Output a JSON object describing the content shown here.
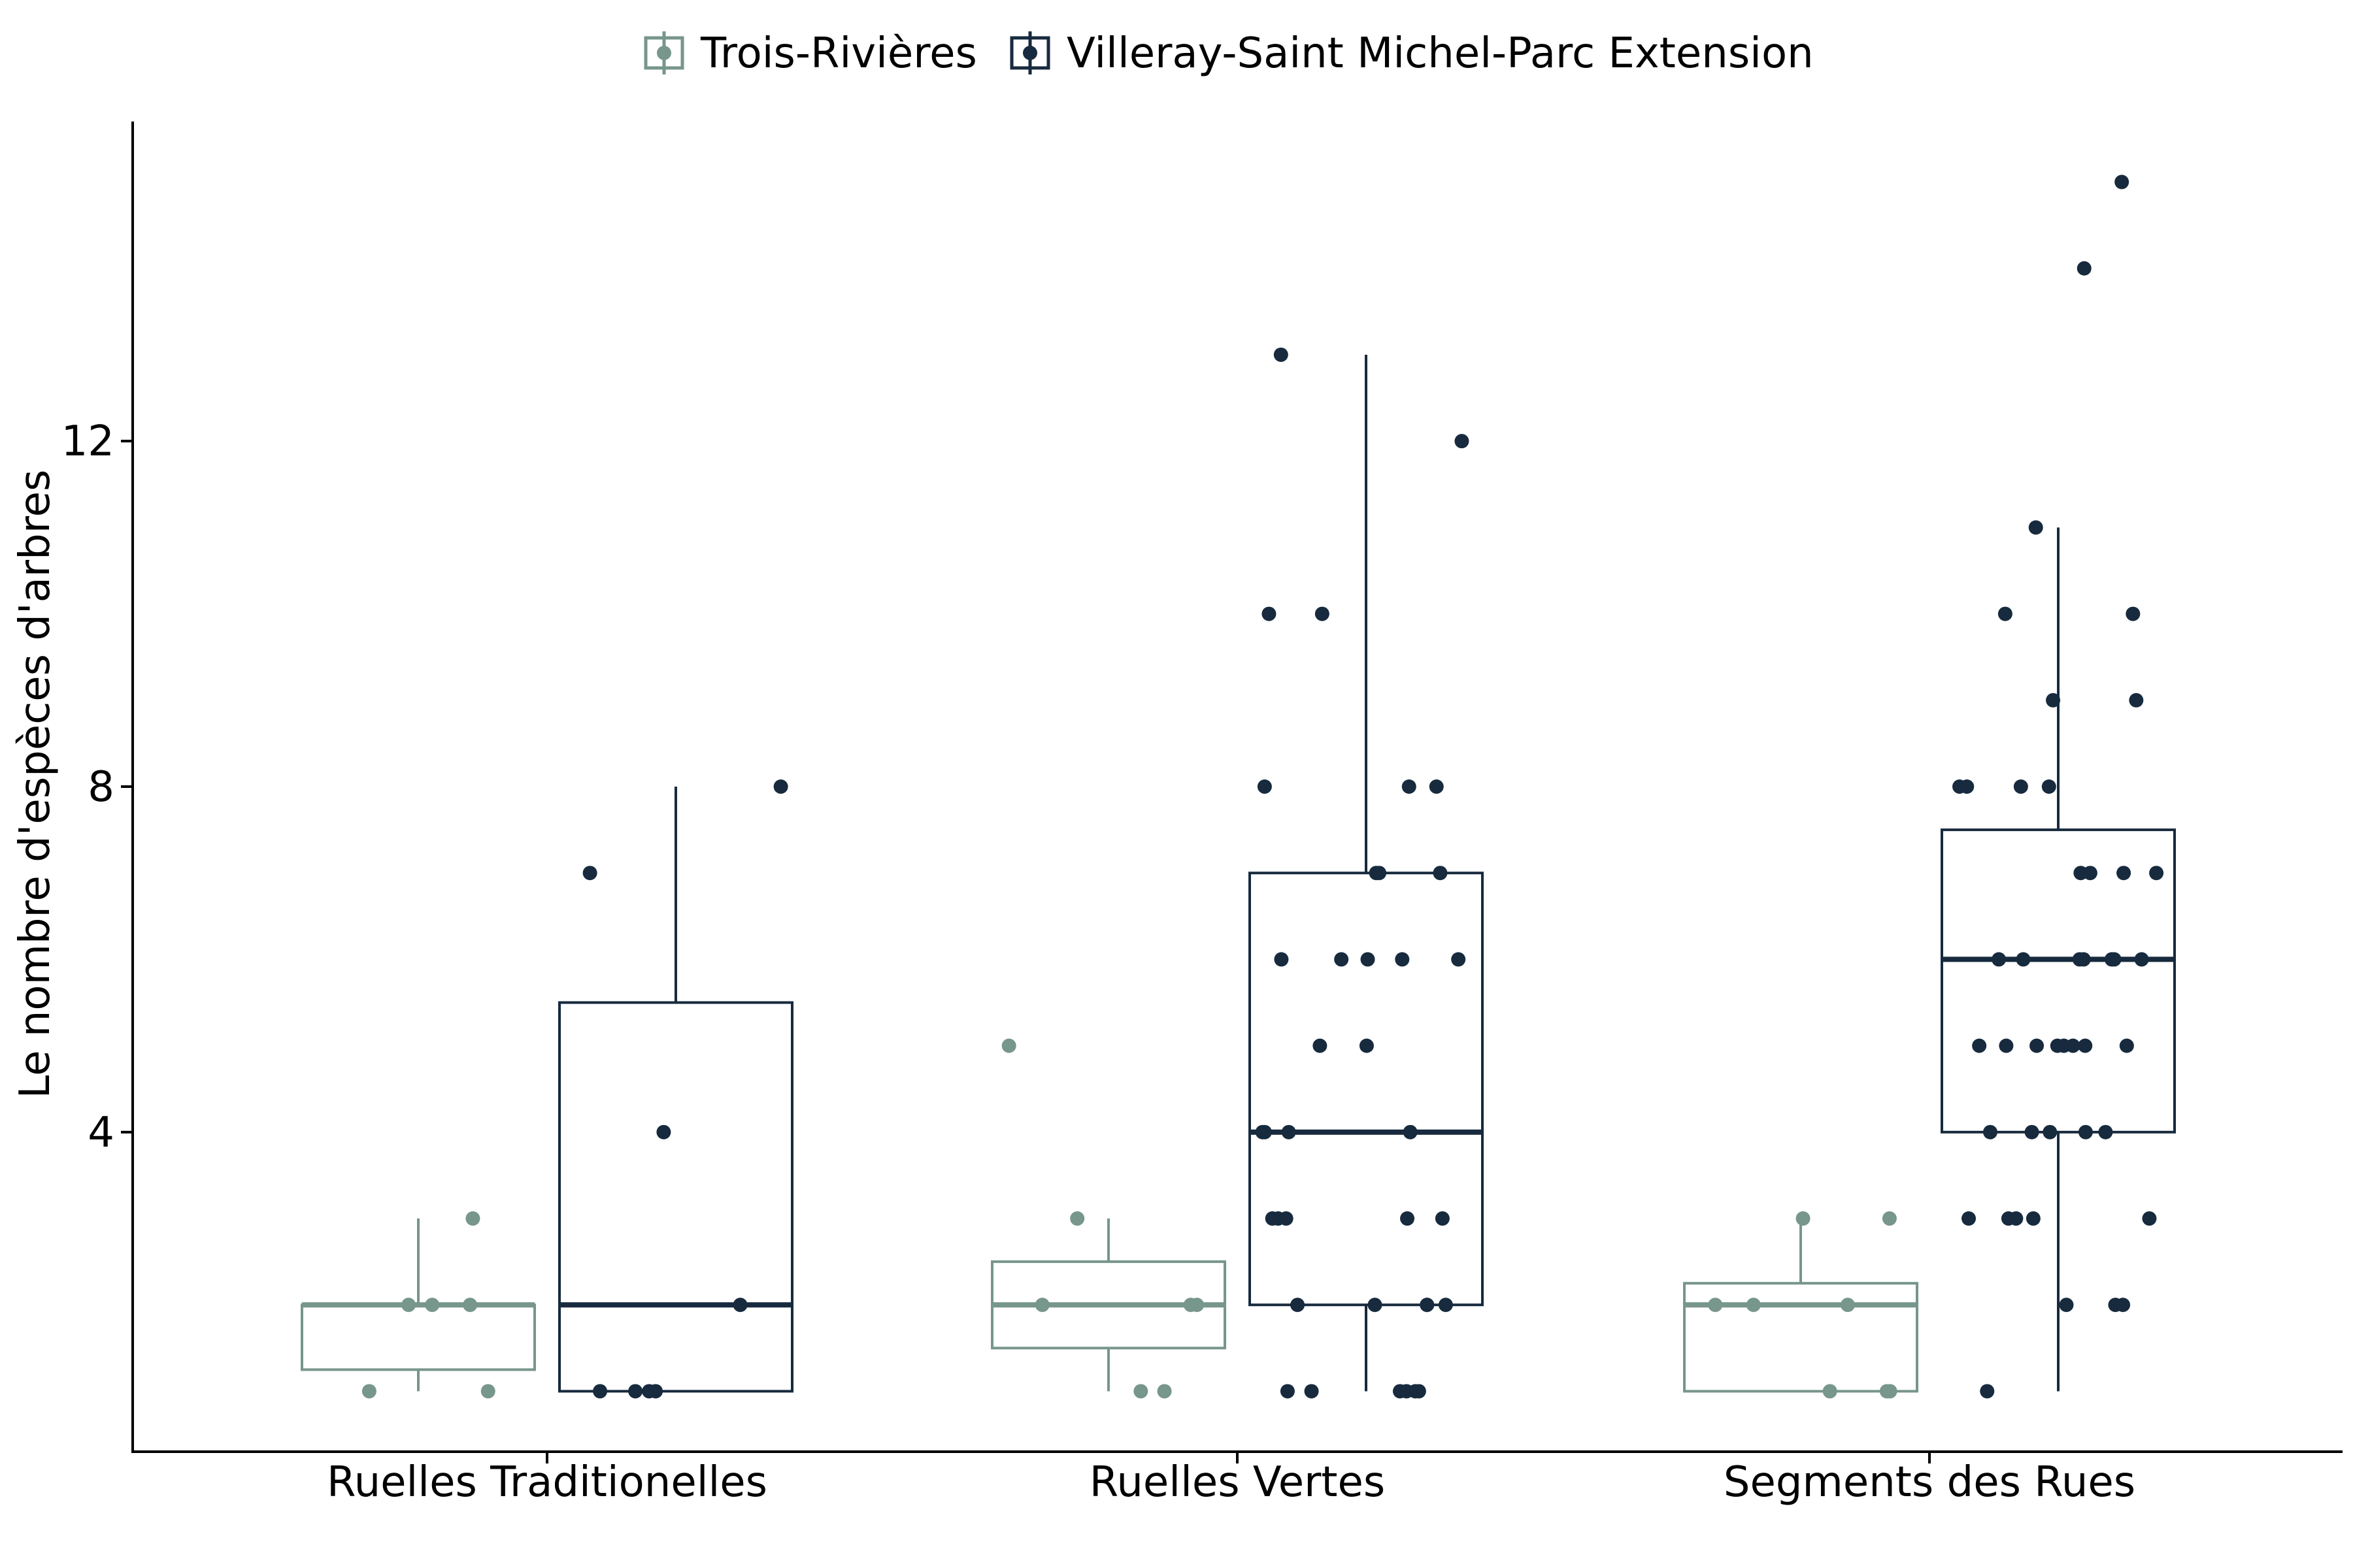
{
  "chart_data": {
    "type": "box",
    "title": "",
    "xlabel": "",
    "ylabel": "Le nombre d'espèces d'arbres",
    "ylim": [
      0.3,
      15.7
    ],
    "yticks": [
      4,
      8,
      12
    ],
    "yticks_labels": [
      "4",
      "8",
      "12"
    ],
    "grid": false,
    "legend_position": "top",
    "categories": [
      "Ruelles Traditionelles",
      "Ruelles Vertes",
      "Segments des Rues"
    ],
    "series": [
      {
        "name": "Trois-Rivières",
        "color": "#77968c",
        "boxes": [
          {
            "category": "Ruelles Traditionelles",
            "whisker_low": 1,
            "q1": 1.25,
            "median": 2,
            "q3": 2,
            "whisker_high": 3,
            "points": [
              2,
              2,
              2,
              1,
              1,
              3
            ]
          },
          {
            "category": "Ruelles Vertes",
            "whisker_low": 1,
            "q1": 1.5,
            "median": 2,
            "q3": 2.5,
            "whisker_high": 3,
            "points": [
              5,
              3,
              2,
              2,
              2,
              1,
              1
            ]
          },
          {
            "category": "Segments des Rues",
            "whisker_low": 1,
            "q1": 1,
            "median": 2,
            "q3": 2.25,
            "whisker_high": 3,
            "points": [
              3,
              3,
              2,
              2,
              2,
              1,
              1,
              1
            ]
          }
        ]
      },
      {
        "name": "Villeray-Saint Michel-Parc Extension",
        "color": "#172a3e",
        "boxes": [
          {
            "category": "Ruelles Traditionelles",
            "whisker_low": 1,
            "q1": 1,
            "median": 2,
            "q3": 5.5,
            "whisker_high": 8,
            "points": [
              8,
              7,
              4,
              2,
              1,
              1,
              1,
              1
            ]
          },
          {
            "category": "Ruelles Vertes",
            "whisker_low": 1,
            "q1": 2,
            "median": 4,
            "q3": 7,
            "whisker_high": 13,
            "points": [
              13,
              12,
              10,
              10,
              8,
              8,
              8,
              7,
              7,
              7,
              6,
              6,
              6,
              6,
              6,
              5,
              5,
              4,
              4,
              4,
              4,
              3,
              3,
              3,
              3,
              3,
              2,
              2,
              2,
              2,
              2,
              1,
              1,
              1,
              1,
              1,
              1
            ]
          },
          {
            "category": "Segments des Rues",
            "whisker_low": 1,
            "q1": 4,
            "median": 6,
            "q3": 7.5,
            "whisker_high": 11,
            "points": [
              15,
              14,
              11,
              10,
              10,
              9,
              9,
              8,
              8,
              8,
              8,
              7,
              7,
              7,
              7,
              6,
              6,
              6,
              6,
              6,
              6,
              6,
              5,
              5,
              5,
              5,
              5,
              5,
              5,
              5,
              4,
              4,
              4,
              4,
              4,
              3,
              3,
              3,
              3,
              3,
              2,
              2,
              2,
              1
            ]
          }
        ]
      }
    ]
  }
}
